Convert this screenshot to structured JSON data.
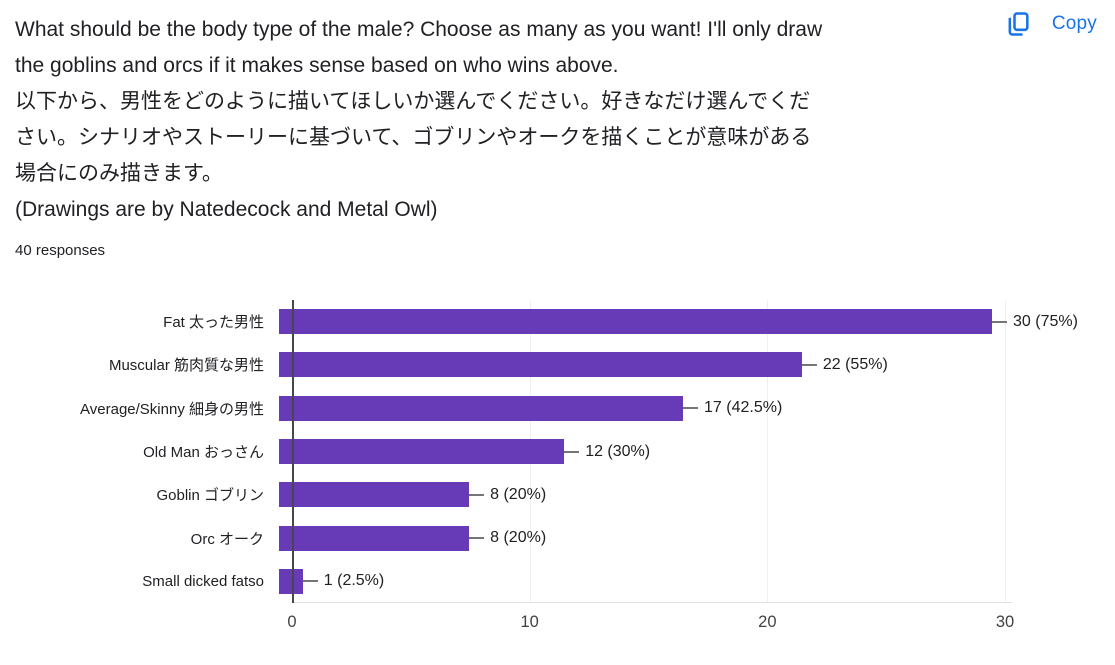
{
  "header": {
    "question_lines": [
      "What should be the body type of the male? Choose as many as you want! I'll only draw",
      "the goblins and orcs if it makes sense based on who wins above.",
      "以下から、男性をどのように描いてほしいか選んでください。好きなだけ選んでくだ",
      "さい。シナリオやストーリーに基づいて、ゴブリンやオークを描くことが意味がある",
      "場合にのみ描きます。",
      "(Drawings are by Natedecock and Metal Owl)"
    ],
    "responses_count": "40 responses",
    "copy_label": "Copy"
  },
  "chart_data": {
    "type": "bar",
    "orientation": "horizontal",
    "categories": [
      "Fat 太った男性",
      "Muscular 筋肉質な男性",
      "Average/Skinny 細身の男性",
      "Old Man おっさん",
      "Goblin ゴブリン",
      "Orc オーク",
      "Small dicked fatso"
    ],
    "values": [
      30,
      22,
      17,
      12,
      8,
      8,
      1
    ],
    "percentages": [
      75,
      55,
      42.5,
      30,
      20,
      20,
      2.5
    ],
    "value_labels": [
      "30 (75%)",
      "22 (55%)",
      "17 (42.5%)",
      "12 (30%)",
      "8 (20%)",
      "8 (20%)",
      "1 (2.5%)"
    ],
    "x_ticks": [
      "0",
      "10",
      "20",
      "30"
    ],
    "xlim": [
      0,
      30
    ],
    "grid": true,
    "legend": "none",
    "colors": {
      "bar": "#673ab7",
      "axis_line": "#484848",
      "gridline": "#efefef",
      "baseline": "#e0e0e0",
      "tick_label": "#424242",
      "annotation": "#202124",
      "connector": "#757575",
      "copy_blue": "#1a73e8",
      "text": "#202124"
    }
  }
}
